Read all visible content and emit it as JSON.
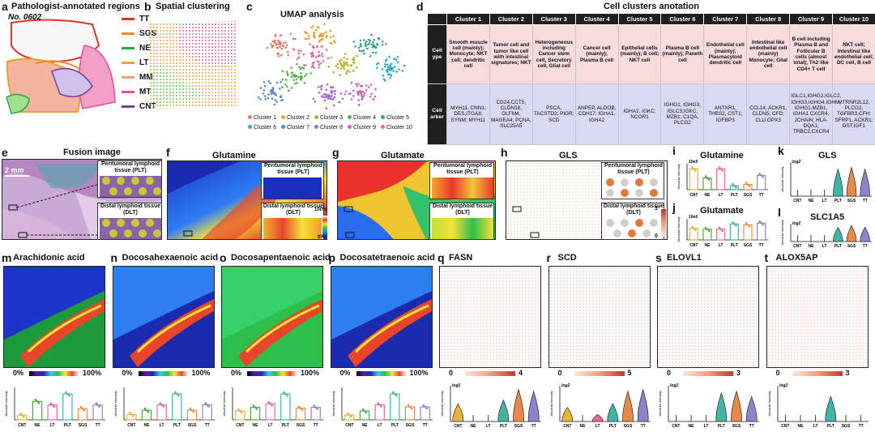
{
  "panel_a": {
    "letter": "a",
    "title": "Pathologist-annotated regions",
    "sample": "No. 0602",
    "legend": [
      {
        "label": "TT",
        "color": "#e0312b"
      },
      {
        "label": "SGS",
        "color": "#f08a24"
      },
      {
        "label": "NE",
        "color": "#2aa84a"
      },
      {
        "label": "LT",
        "color": "#e2a52e"
      },
      {
        "label": "MM",
        "color": "#f2a07a"
      },
      {
        "label": "MT",
        "color": "#ea4a9c"
      },
      {
        "label": "CNT",
        "color": "#7a3fa0"
      }
    ]
  },
  "panel_b": {
    "letter": "b",
    "title": "Spatial clustering"
  },
  "panel_c": {
    "letter": "c",
    "title": "UMAP analysis",
    "legend": [
      {
        "label": "Cluster 1",
        "color": "#e57a6a"
      },
      {
        "label": "Cluster 2",
        "color": "#e0a33a"
      },
      {
        "label": "Cluster 3",
        "color": "#b0b52e"
      },
      {
        "label": "Cluster 4",
        "color": "#5cb04a"
      },
      {
        "label": "Cluster 5",
        "color": "#3aa38a"
      },
      {
        "label": "Cluster 6",
        "color": "#35a7c9"
      },
      {
        "label": "Cluster 7",
        "color": "#5a86d6"
      },
      {
        "label": "Cluster 8",
        "color": "#a56bd0"
      },
      {
        "label": "Cluster 9",
        "color": "#d266b8"
      },
      {
        "label": "Cluster 10",
        "color": "#e06a9a"
      }
    ]
  },
  "panel_d": {
    "letter": "d",
    "title": "Cell clusters anotation",
    "headers": [
      "",
      "Cluster 1",
      "Cluster 2",
      "Cluster 3",
      "Cluster 4",
      "Cluster 5",
      "Cluster 6",
      "Cluster 7",
      "Cluster 8",
      "Cluster 9",
      "Cluster 10"
    ],
    "row1_label": "Cell ype",
    "row2_label": "Cell arker",
    "celltype": [
      "Smooth muscle cell (mainly); Monocyte; NKT cell; dendritic cell",
      "Tumor cell and tumor like cell with intestinal signatures; NKT",
      "Heterogeneous including Cancer stem cell, Secretory cell, Glial cell",
      "Cancer cell (mainly); Plasma B cell",
      "Epithelial cells (mainly); B cell; NKT cell",
      "Plasma B cell (mainly); Paneth cell",
      "Endothelial cell (mainly); Plasmacytoid dendritic cell",
      "Intestinal like endothelial cell (mainly) Monocyte; Glial cell",
      "B cell including Plasma B and Follicular B cells (almost total); Th2 like CD4+ T cell",
      "NKT cell; Intestinal like endothelial cell; DC cell, B cell"
    ],
    "markers": [
      "MYH11, CNN1; DES,ITGA8; SYNM; MYH11",
      "CD24,CCT5, CLDN18, OLFM4, MAGEA4; PCNA, SLC25A5",
      "PSCA, TACSTD2; PIGR; SCD",
      "ANPEP, ALDOB, CDH17; IGHA1, IGHA2",
      "IGHA2, IGKC; NCOR1",
      "IGHG1, IGHG3, IGLC3,IGKC, MZB1; C1QA, PLCG2",
      "ANTXR1, THBS2, CST1; IGFBP3",
      "CCL14, ACKR1, CLDN5; CFD; CLU,GPX3",
      "IGLC1,IGHG2,IGLC2, IGHG3,IGHG4,IGHM, IGHG1,MZB1, IGHA1 CXCR4, JCHAIN; HLA-DQA1; TRBC2,CXCR4",
      "MTRNR2L12, PLCG2, TGFBR3,CFH; SFRP1, ACKR1; DST;IGF1"
    ]
  },
  "panel_e": {
    "letter": "e",
    "title": "Fusion image",
    "scale": "2 mm",
    "inset1": "Peritumoral lymphoid tissue (PLT)",
    "inset2": "Distal lymphoid tissue (DLT)"
  },
  "panel_f": {
    "letter": "f",
    "title": "Glutamine",
    "inset1": "Peritumoral lymphoid tissue (PLT)",
    "inset2": "Distal lymphoid tissue (DLT)",
    "cb_top": "100%",
    "cb_bot": "0%"
  },
  "panel_g": {
    "letter": "g",
    "title": "Glutamate",
    "inset1": "Peritumoral lymphoid tissue (PLT)",
    "inset2": "Distal lymphoid tissue (DLT)"
  },
  "panel_h": {
    "letter": "h",
    "title": "GLS",
    "inset1": "Peritumoral lymphoid tissue (PLT)",
    "inset2": "Distal lymphoid tissue (DLT)",
    "cb_top": "3",
    "cb_bot": "0"
  },
  "panel_i": {
    "letter": "i",
    "title": "Glutamine",
    "unit": "10e5",
    "ylabel": "Absolute intensity"
  },
  "panel_j": {
    "letter": "j",
    "title": "Glutamate",
    "unit": "10e6",
    "ylabel": "Absolute intensity"
  },
  "panel_k": {
    "letter": "k",
    "title": "GLS",
    "unit": "log2",
    "ylabel": "Absolute intensity"
  },
  "panel_l": {
    "letter": "l",
    "title": "SLC1A5",
    "unit": "log2",
    "ylabel": "Absolute intensity"
  },
  "groups": [
    "CNT",
    "NE",
    "LT",
    "PLT",
    "SGS",
    "TT"
  ],
  "group_colors": [
    "#e6b43a",
    "#4fa83c",
    "#e2689b",
    "#43b3a6",
    "#e8894a",
    "#8b84c8"
  ],
  "bottom_panels": [
    {
      "letter": "m",
      "title": "Arachidonic acid",
      "cb_lo": "0%",
      "cb_hi": "100%"
    },
    {
      "letter": "n",
      "title": "Docosahexaenoic acid",
      "cb_lo": "0%",
      "cb_hi": "100%"
    },
    {
      "letter": "o",
      "title": "Docosapentaenoic acid",
      "cb_lo": "0%",
      "cb_hi": "100%"
    },
    {
      "letter": "p",
      "title": "Docosatetraenoic acid",
      "cb_lo": "0%",
      "cb_hi": "100%"
    },
    {
      "letter": "q",
      "title": "FASN",
      "cb_lo": "0",
      "cb_hi": "4"
    },
    {
      "letter": "r",
      "title": "SCD",
      "cb_lo": "0",
      "cb_hi": "5"
    },
    {
      "letter": "s",
      "title": "ELOVL1",
      "cb_lo": "0",
      "cb_hi": "3"
    },
    {
      "letter": "t",
      "title": "ALOX5AP",
      "cb_lo": "0",
      "cb_hi": "3"
    }
  ],
  "chart_data": [
    {
      "type": "bar",
      "title": "Glutamine",
      "categories": [
        "CNT",
        "NE",
        "LT",
        "PLT",
        "SGS",
        "TT"
      ],
      "values": [
        8,
        4.5,
        8,
        1.5,
        2,
        5.5
      ],
      "ylabel": "Absolute intensity",
      "unit": "10e5"
    },
    {
      "type": "bar",
      "title": "Glutamate",
      "categories": [
        "CNT",
        "NE",
        "LT",
        "PLT",
        "SGS",
        "TT"
      ],
      "values": [
        1.3,
        1.2,
        1.2,
        1.8,
        1.7,
        1.9
      ],
      "ylabel": "Absolute intensity",
      "unit": "10e6"
    },
    {
      "type": "bar",
      "title": "Arachidonic acid",
      "categories": [
        "CNT",
        "NE",
        "LT",
        "PLT",
        "SGS",
        "TT"
      ],
      "values": [
        0.5,
        2.0,
        1.6,
        2.8,
        1.2,
        1.6
      ],
      "ylabel": "Absolute intensity"
    },
    {
      "type": "bar",
      "title": "Docosahexaenoic acid",
      "categories": [
        "CNT",
        "NE",
        "LT",
        "PLT",
        "SGS",
        "TT"
      ],
      "values": [
        0.8,
        1.4,
        2.2,
        3.8,
        1.4,
        2.2
      ],
      "ylabel": "Absolute intensity"
    },
    {
      "type": "bar",
      "title": "Docosapentaenoic acid",
      "categories": [
        "CNT",
        "NE",
        "LT",
        "PLT",
        "SGS",
        "TT"
      ],
      "values": [
        1.0,
        1.4,
        1.8,
        2.9,
        1.3,
        1.4
      ],
      "ylabel": "Absolute intensity"
    },
    {
      "type": "bar",
      "title": "Docosatetraenoic acid",
      "categories": [
        "CNT",
        "NE",
        "LT",
        "PLT",
        "SGS",
        "TT"
      ],
      "values": [
        0.7,
        1.3,
        2.2,
        3.8,
        1.9,
        1.9
      ],
      "ylabel": "Absolute intensity"
    }
  ]
}
